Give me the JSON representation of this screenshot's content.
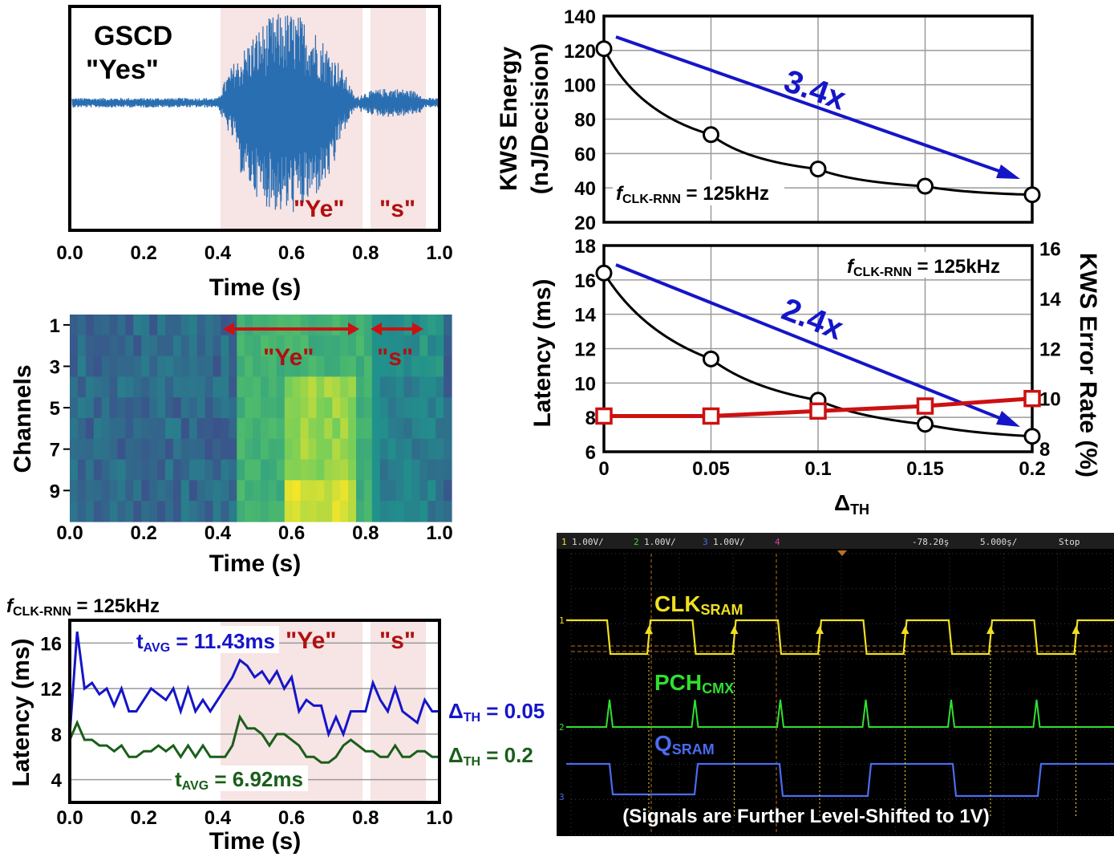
{
  "panel_a": {
    "label_line1": "GSCD",
    "label_line2": "\"Yes\"",
    "seg1": "\"Ye\"",
    "seg2": "\"s\"",
    "xlabel": "Time (s)",
    "xticks": [
      "0.0",
      "0.2",
      "0.4",
      "0.6",
      "0.8",
      "1.0"
    ]
  },
  "panel_b": {
    "ylabel": "Channels",
    "yticks": [
      "1",
      "3",
      "5",
      "7",
      "9"
    ],
    "seg1": "\"Ye\"",
    "seg2": "\"s\"",
    "xlabel": "Time (s)",
    "xticks": [
      "0.0",
      "0.2",
      "0.4",
      "0.6",
      "0.8",
      "1.0"
    ]
  },
  "panel_c": {
    "fclk_f": "f",
    "fclk_sub": "CLK-RNN",
    "fclk_val": " = 125kHz",
    "ylabel": "Latency (ms)",
    "yticks": [
      "4",
      "8",
      "12",
      "16"
    ],
    "xlabel": "Time (s)",
    "xticks": [
      "0.0",
      "0.2",
      "0.4",
      "0.6",
      "0.8",
      "1.0"
    ],
    "seg1": "\"Ye\"",
    "seg2": "\"s\"",
    "tavg1_t": "t",
    "tavg1_sub": "AVG",
    "tavg1_val": " = 11.43ms",
    "tavg2_t": "t",
    "tavg2_sub": "AVG",
    "tavg2_val": " = 6.92ms",
    "series1_delta": "Δ",
    "series1_sub": "TH",
    "series1_val": " = 0.05",
    "series2_delta": "Δ",
    "series2_sub": "TH",
    "series2_val": " = 0.2"
  },
  "panel_d": {
    "ylabel1": "KWS Energy",
    "ylabel2": "(nJ/Decision)",
    "yticks": [
      "20",
      "40",
      "60",
      "80",
      "100",
      "120",
      "140"
    ],
    "fclk_f": "f",
    "fclk_sub": "CLK-RNN",
    "fclk_val": " = 125kHz",
    "ratio": "3.4x"
  },
  "panel_e": {
    "ylabel_left": "Latency (ms)",
    "ylabel_right": "KWS Error Rate (%)",
    "yticks_left": [
      "6",
      "8",
      "10",
      "12",
      "14",
      "16",
      "18"
    ],
    "yticks_right": [
      "8",
      "10",
      "12",
      "14",
      "16"
    ],
    "xticks": [
      "0",
      "0.05",
      "0.1",
      "0.15",
      "0.2"
    ],
    "xlabel_delta": "Δ",
    "xlabel_sub": "TH",
    "fclk_f": "f",
    "fclk_sub": "CLK-RNN",
    "fclk_val": " = 125kHz",
    "ratio": "2.4x"
  },
  "scope": {
    "ch1": "1",
    "ch1_scale": "1.00V/",
    "ch2": "2",
    "ch2_scale": "1.00V/",
    "ch3": "3",
    "ch3_scale": "1.00V/",
    "ch4": "4",
    "offset": "-78.20ş",
    "timebase": "5.000ş/",
    "status": "Stop",
    "trace1_label": "CLK",
    "trace1_sub": "SRAM",
    "trace2_label": "PCH",
    "trace2_sub": "CMX",
    "trace3_label": "Q",
    "trace3_sub": "SRAM",
    "note": "(Signals are Further Level-Shifted to 1V)"
  },
  "colors": {
    "blue_series": "#1515c8",
    "green_series": "#1a5e1a",
    "red_series": "#cc1111",
    "segment_text": "#b01010",
    "shade": "#f7e4e4",
    "scope_yellow": "#f0e020",
    "scope_green": "#30e030",
    "scope_blue": "#4a6cf0"
  },
  "chart_data": [
    {
      "type": "line",
      "name": "panel_a_waveform",
      "xlabel": "Time (s)",
      "xlim": [
        0,
        1
      ],
      "segments": [
        {
          "label": "\"Ye\"",
          "x": [
            0.4,
            0.79
          ]
        },
        {
          "label": "\"s\"",
          "x": [
            0.81,
            0.96
          ]
        }
      ]
    },
    {
      "type": "heatmap",
      "name": "panel_b_spectrogram",
      "xlabel": "Time (s)",
      "ylabel": "Channels",
      "xlim": [
        0,
        1
      ],
      "channels": 10,
      "segments": [
        {
          "label": "\"Ye\"",
          "x": [
            0.42,
            0.78
          ]
        },
        {
          "label": "\"s\"",
          "x": [
            0.82,
            0.96
          ]
        }
      ]
    },
    {
      "type": "line",
      "name": "panel_c_latency_vs_time",
      "xlabel": "Time (s)",
      "ylabel": "Latency (ms)",
      "xlim": [
        0,
        1
      ],
      "ylim": [
        2,
        18
      ],
      "x": [
        0.0,
        0.02,
        0.04,
        0.06,
        0.08,
        0.1,
        0.12,
        0.14,
        0.16,
        0.18,
        0.2,
        0.22,
        0.24,
        0.26,
        0.28,
        0.3,
        0.32,
        0.34,
        0.36,
        0.38,
        0.4,
        0.42,
        0.44,
        0.46,
        0.48,
        0.5,
        0.52,
        0.54,
        0.56,
        0.58,
        0.6,
        0.62,
        0.64,
        0.66,
        0.68,
        0.7,
        0.72,
        0.74,
        0.76,
        0.78,
        0.8,
        0.82,
        0.84,
        0.86,
        0.88,
        0.9,
        0.92,
        0.94,
        0.96,
        0.98,
        1.0
      ],
      "series": [
        {
          "name": "ΔTH = 0.05",
          "values": [
            8,
            17,
            12,
            12.5,
            11.5,
            12,
            10.5,
            12,
            10,
            10,
            11,
            12,
            11.5,
            11,
            12,
            10,
            12,
            10,
            11,
            10,
            11,
            12,
            13,
            14.5,
            14,
            13,
            13.5,
            12.5,
            13.5,
            12,
            13,
            10,
            11,
            10.5,
            10.5,
            8,
            9.5,
            8,
            10,
            10,
            10,
            12.5,
            11,
            10,
            12,
            10,
            9.5,
            9,
            11,
            10,
            10
          ]
        },
        {
          "name": "ΔTH = 0.2",
          "values": [
            7.5,
            9,
            7.5,
            7.5,
            7,
            7,
            6.5,
            7,
            6,
            6,
            6.5,
            6.5,
            7,
            6.5,
            7,
            6,
            7,
            6,
            7,
            6,
            6,
            6,
            7,
            9.5,
            8.5,
            8.5,
            8,
            7,
            8,
            8,
            7.5,
            7,
            6,
            6,
            5.5,
            5.5,
            6,
            7,
            7.5,
            7,
            6.5,
            6.5,
            6,
            6,
            7,
            6,
            6,
            6.5,
            6.5,
            6,
            6
          ]
        }
      ],
      "annotations": [
        "tAVG = 11.43ms",
        "tAVG = 6.92ms"
      ],
      "segments": [
        {
          "label": "\"Ye\"",
          "x": [
            0.4,
            0.79
          ]
        },
        {
          "label": "\"s\"",
          "x": [
            0.81,
            0.96
          ]
        }
      ]
    },
    {
      "type": "line",
      "name": "panel_d_energy",
      "ylabel": "KWS Energy (nJ/Decision)",
      "x": [
        0,
        0.05,
        0.1,
        0.15,
        0.2
      ],
      "xlim": [
        0,
        0.2
      ],
      "ylim": [
        20,
        140
      ],
      "values": [
        121,
        71,
        51,
        41,
        36
      ],
      "annotation": "3.4x"
    },
    {
      "type": "line",
      "name": "panel_e_latency_error",
      "xlabel": "ΔTH",
      "x": [
        0,
        0.05,
        0.1,
        0.15,
        0.2
      ],
      "xlim": [
        0,
        0.2
      ],
      "series": [
        {
          "name": "Latency (ms)",
          "axis": "left",
          "ylim": [
            6,
            18
          ],
          "values": [
            16.4,
            11.4,
            9.0,
            7.6,
            6.9
          ]
        },
        {
          "name": "KWS Error Rate (%)",
          "axis": "right",
          "ylim": [
            8,
            16
          ],
          "values": [
            9.3,
            9.3,
            9.5,
            9.7,
            10
          ]
        }
      ],
      "annotation": "2.4x"
    }
  ]
}
